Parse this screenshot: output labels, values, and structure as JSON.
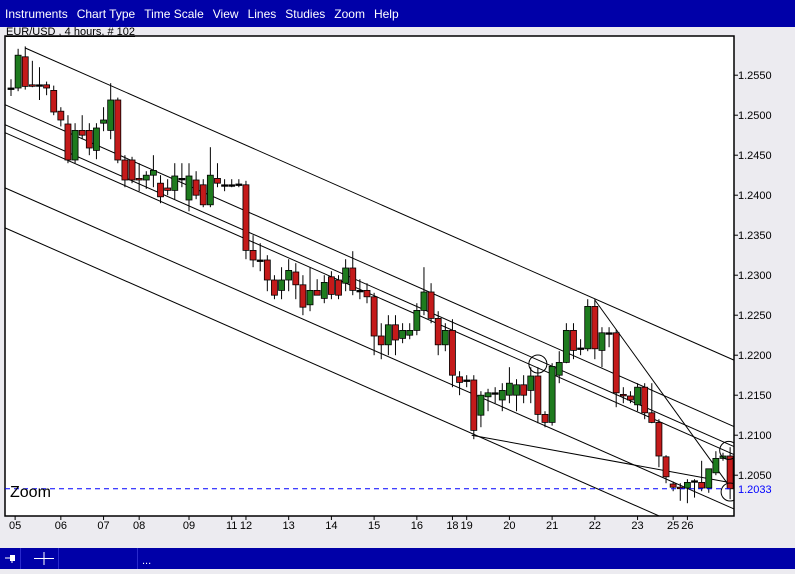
{
  "menu": {
    "items": [
      "Instruments",
      "Chart Type",
      "Time Scale",
      "View",
      "Lines",
      "Studies",
      "Zoom",
      "Help"
    ]
  },
  "chart_header": {
    "title": "EUR/USD , 4 hours, # 102"
  },
  "overlay": {
    "zoom_label": "Zoom"
  },
  "status_bar": {
    "text": "...",
    "icons": [
      "pin-icon",
      "crosshair-icon"
    ]
  },
  "colors": {
    "menu_bg": "#0000a8",
    "bull": "#1e7b1e",
    "bear": "#c41a1a",
    "current_price": "#0000ff",
    "plot_bg": "#ffffff"
  },
  "chart_data": {
    "type": "candlestick",
    "instrument": "EUR/USD",
    "timeframe": "4 hours",
    "ylim": [
      1.1999,
      1.2599
    ],
    "y_ticks": [
      "1.2550",
      "1.2500",
      "1.2450",
      "1.2400",
      "1.2350",
      "1.2300",
      "1.2250",
      "1.2200",
      "1.2150",
      "1.2100",
      "1.2050"
    ],
    "current_price": "1.2033",
    "x_ticks": [
      {
        "label": "05",
        "bar": 1
      },
      {
        "label": "06",
        "bar": 7
      },
      {
        "label": "07",
        "bar": 13
      },
      {
        "label": "08",
        "bar": 18
      },
      {
        "label": "09",
        "bar": 25
      },
      {
        "label": "11",
        "bar": 31
      },
      {
        "label": "12",
        "bar": 33
      },
      {
        "label": "13",
        "bar": 39
      },
      {
        "label": "14",
        "bar": 45
      },
      {
        "label": "15",
        "bar": 51
      },
      {
        "label": "16",
        "bar": 57
      },
      {
        "label": "18",
        "bar": 62
      },
      {
        "label": "19",
        "bar": 64
      },
      {
        "label": "20",
        "bar": 70
      },
      {
        "label": "21",
        "bar": 76
      },
      {
        "label": "22",
        "bar": 82
      },
      {
        "label": "23",
        "bar": 88
      },
      {
        "label": "25",
        "bar": 93
      },
      {
        "label": "26",
        "bar": 95
      }
    ],
    "ohlc": [
      [
        1.2534,
        1.2545,
        1.2524,
        1.2534
      ],
      [
        1.2534,
        1.2583,
        1.253,
        1.2575
      ],
      [
        1.2573,
        1.2586,
        1.2532,
        1.2536
      ],
      [
        1.2538,
        1.2568,
        1.2535,
        1.2537
      ],
      [
        1.2538,
        1.256,
        1.2519,
        1.2538
      ],
      [
        1.2538,
        1.2542,
        1.2525,
        1.2534
      ],
      [
        1.2531,
        1.2537,
        1.25,
        1.2504
      ],
      [
        1.2505,
        1.251,
        1.2486,
        1.2494
      ],
      [
        1.2489,
        1.25,
        1.244,
        1.2444
      ],
      [
        1.2444,
        1.249,
        1.244,
        1.2481
      ],
      [
        1.2481,
        1.25,
        1.247,
        1.2475
      ],
      [
        1.2481,
        1.249,
        1.245,
        1.2459
      ],
      [
        1.2456,
        1.249,
        1.2445,
        1.2484
      ],
      [
        1.249,
        1.251,
        1.248,
        1.2494
      ],
      [
        1.2481,
        1.254,
        1.247,
        1.2519
      ],
      [
        1.2519,
        1.2522,
        1.244,
        1.2444
      ],
      [
        1.2444,
        1.245,
        1.241,
        1.2419
      ],
      [
        1.2444,
        1.2448,
        1.2415,
        1.2419
      ],
      [
        1.2421,
        1.244,
        1.2405,
        1.2419
      ],
      [
        1.2419,
        1.243,
        1.2408,
        1.2425
      ],
      [
        1.2425,
        1.245,
        1.241,
        1.2431
      ],
      [
        1.2415,
        1.2425,
        1.239,
        1.2398
      ],
      [
        1.2409,
        1.242,
        1.24,
        1.2406
      ],
      [
        1.2406,
        1.244,
        1.2395,
        1.2424
      ],
      [
        1.2421,
        1.244,
        1.241,
        1.2421
      ],
      [
        1.2394,
        1.244,
        1.238,
        1.2424
      ],
      [
        1.2419,
        1.243,
        1.2395,
        1.24
      ],
      [
        1.2413,
        1.242,
        1.2385,
        1.2388
      ],
      [
        1.2388,
        1.246,
        1.2385,
        1.2425
      ],
      [
        1.2421,
        1.244,
        1.241,
        1.2415
      ],
      [
        1.2413,
        1.242,
        1.2405,
        1.2413
      ],
      [
        1.2413,
        1.242,
        1.241,
        1.2413
      ],
      [
        1.2414,
        1.242,
        1.241,
        1.2414
      ],
      [
        1.2413,
        1.2418,
        1.232,
        1.2331
      ],
      [
        1.2331,
        1.235,
        1.231,
        1.2319
      ],
      [
        1.2319,
        1.234,
        1.2305,
        1.2319
      ],
      [
        1.2319,
        1.2325,
        1.228,
        1.2294
      ],
      [
        1.2294,
        1.23,
        1.227,
        1.2275
      ],
      [
        1.2281,
        1.231,
        1.227,
        1.2294
      ],
      [
        1.2294,
        1.232,
        1.228,
        1.2306
      ],
      [
        1.2304,
        1.2315,
        1.227,
        1.2288
      ],
      [
        1.2288,
        1.23,
        1.225,
        1.226
      ],
      [
        1.2263,
        1.231,
        1.2255,
        1.2281
      ],
      [
        1.2281,
        1.2295,
        1.2275,
        1.2275
      ],
      [
        1.2271,
        1.23,
        1.2265,
        1.2291
      ],
      [
        1.2298,
        1.2305,
        1.227,
        1.2276
      ],
      [
        1.2294,
        1.23,
        1.227,
        1.2275
      ],
      [
        1.229,
        1.232,
        1.228,
        1.2309
      ],
      [
        1.2309,
        1.233,
        1.2275,
        1.2281
      ],
      [
        1.2281,
        1.2295,
        1.227,
        1.2281
      ],
      [
        1.2281,
        1.229,
        1.2265,
        1.2273
      ],
      [
        1.2273,
        1.2278,
        1.22,
        1.2224
      ],
      [
        1.2224,
        1.224,
        1.2195,
        1.2213
      ],
      [
        1.2213,
        1.225,
        1.22,
        1.2238
      ],
      [
        1.2238,
        1.225,
        1.22,
        1.2219
      ],
      [
        1.2221,
        1.224,
        1.2215,
        1.2231
      ],
      [
        1.2225,
        1.224,
        1.222,
        1.2231
      ],
      [
        1.2231,
        1.2265,
        1.2225,
        1.2256
      ],
      [
        1.2256,
        1.231,
        1.225,
        1.2279
      ],
      [
        1.2279,
        1.229,
        1.224,
        1.2246
      ],
      [
        1.2246,
        1.2255,
        1.22,
        1.2213
      ],
      [
        1.2213,
        1.224,
        1.2205,
        1.2231
      ],
      [
        1.2231,
        1.2245,
        1.216,
        1.2175
      ],
      [
        1.2173,
        1.218,
        1.215,
        1.2166
      ],
      [
        1.2169,
        1.2175,
        1.216,
        1.2169
      ],
      [
        1.2169,
        1.2175,
        1.2095,
        1.2106
      ],
      [
        1.2125,
        1.2155,
        1.211,
        1.215
      ],
      [
        1.2148,
        1.2158,
        1.213,
        1.2153
      ],
      [
        1.2153,
        1.216,
        1.214,
        1.2153
      ],
      [
        1.2144,
        1.2165,
        1.213,
        1.2156
      ],
      [
        1.215,
        1.2185,
        1.214,
        1.2165
      ],
      [
        1.215,
        1.217,
        1.213,
        1.2163
      ],
      [
        1.2163,
        1.2175,
        1.214,
        1.215
      ],
      [
        1.2156,
        1.2185,
        1.214,
        1.2174
      ],
      [
        1.2174,
        1.2185,
        1.2115,
        1.2126
      ],
      [
        1.2126,
        1.213,
        1.211,
        1.2116
      ],
      [
        1.2116,
        1.219,
        1.2112,
        1.2186
      ],
      [
        1.2175,
        1.2205,
        1.2165,
        1.2191
      ],
      [
        1.2191,
        1.224,
        1.219,
        1.2231
      ],
      [
        1.2231,
        1.224,
        1.2195,
        1.2206
      ],
      [
        1.2209,
        1.222,
        1.22,
        1.2209
      ],
      [
        1.2208,
        1.227,
        1.2205,
        1.2261
      ],
      [
        1.2261,
        1.227,
        1.2195,
        1.2208
      ],
      [
        1.2206,
        1.2235,
        1.2185,
        1.2228
      ],
      [
        1.2228,
        1.2235,
        1.221,
        1.2228
      ],
      [
        1.2228,
        1.2232,
        1.2135,
        1.2153
      ],
      [
        1.2151,
        1.216,
        1.214,
        1.215
      ],
      [
        1.2149,
        1.2155,
        1.214,
        1.2144
      ],
      [
        1.2138,
        1.2165,
        1.213,
        1.216
      ],
      [
        1.216,
        1.2165,
        1.212,
        1.2128
      ],
      [
        1.2128,
        1.2165,
        1.2115,
        1.2116
      ],
      [
        1.2116,
        1.212,
        1.206,
        1.2074
      ],
      [
        1.2073,
        1.2075,
        1.204,
        1.2048
      ],
      [
        1.2039,
        1.2042,
        1.203,
        1.2035
      ],
      [
        1.2035,
        1.204,
        1.2018,
        1.2034
      ],
      [
        1.2034,
        1.2045,
        1.2015,
        1.2041
      ],
      [
        1.2043,
        1.2045,
        1.2022,
        1.2043
      ],
      [
        1.2041,
        1.2068,
        1.203,
        1.2034
      ],
      [
        1.2034,
        1.2058,
        1.2028,
        1.2058
      ],
      [
        1.2053,
        1.208,
        1.205,
        1.2071
      ],
      [
        1.2071,
        1.2078,
        1.2068,
        1.2074
      ],
      [
        1.2074,
        1.2085,
        1.202,
        1.2033
      ]
    ],
    "trend_lines": [
      {
        "from": [
          2,
          1.2584
        ],
        "to": [
          101.5,
          1.2194
        ]
      },
      {
        "from": [
          -0.8,
          1.2513
        ],
        "to": [
          101.5,
          1.2111
        ]
      },
      {
        "from": [
          -0.8,
          1.2488
        ],
        "to": [
          101.5,
          1.2086
        ]
      },
      {
        "from": [
          -0.8,
          1.2478
        ],
        "to": [
          101.5,
          1.2076
        ]
      },
      {
        "from": [
          -0.8,
          1.2409
        ],
        "to": [
          101.5,
          1.2008
        ]
      },
      {
        "from": [
          -0.8,
          1.2359
        ],
        "to": [
          101.5,
          1.1958
        ]
      },
      {
        "from": [
          64.7,
          1.21
        ],
        "to": [
          101.5,
          1.204
        ]
      },
      {
        "from": [
          82,
          1.2269
        ],
        "to": [
          101,
          1.2035
        ]
      }
    ],
    "circle_markers": [
      [
        74,
        1.2189
      ],
      [
        100.8,
        1.2081
      ],
      [
        101,
        1.2029
      ]
    ]
  }
}
